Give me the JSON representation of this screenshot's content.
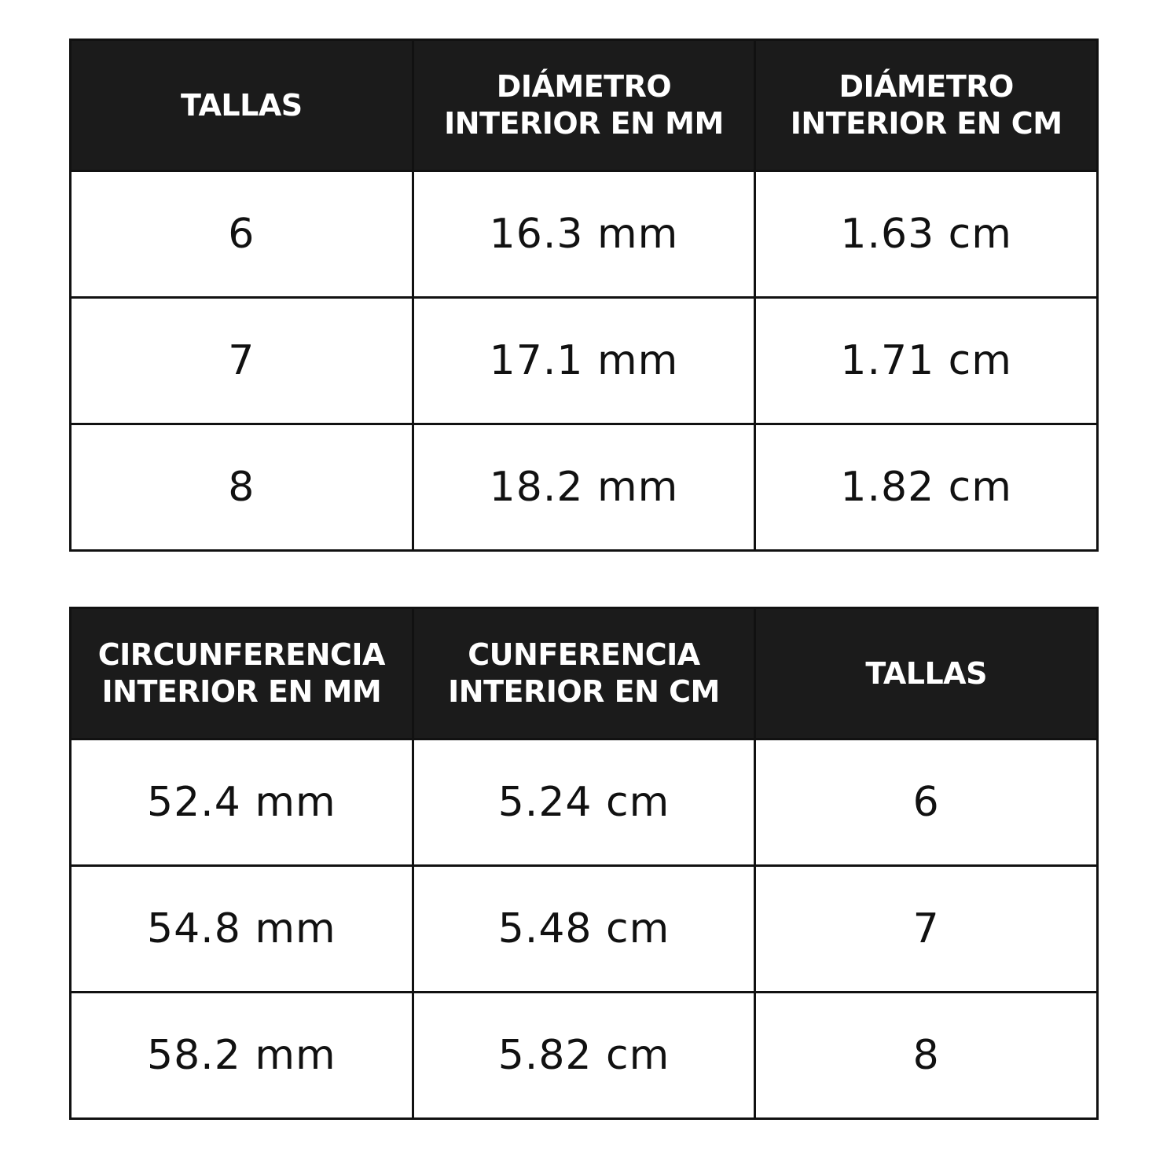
{
  "tables": [
    {
      "headers": [
        "TALLAS",
        "DIÁMETRO\nINTERIOR EN MM",
        "DIÁMETRO\nINTERIOR EN CM"
      ],
      "rows": [
        [
          "6",
          "16.3 mm",
          "1.63 cm"
        ],
        [
          "7",
          "17.1 mm",
          "1.71 cm"
        ],
        [
          "8",
          "18.2 mm",
          "1.82 cm"
        ]
      ]
    },
    {
      "headers": [
        "CIRCUNFERENCIA\nINTERIOR EN MM",
        "CUNFERENCIA\nINTERIOR EN CM",
        "TALLAS"
      ],
      "rows": [
        [
          "52.4 mm",
          "5.24 cm",
          "6"
        ],
        [
          "54.8 mm",
          "5.48 cm",
          "7"
        ],
        [
          "58.2 mm",
          "5.82 cm",
          "8"
        ]
      ]
    }
  ],
  "colors": {
    "header_background": "#1b1b1b",
    "header_text": "#ffffff",
    "cell_background": "#ffffff",
    "cell_text": "#111111",
    "border": "#111111"
  }
}
